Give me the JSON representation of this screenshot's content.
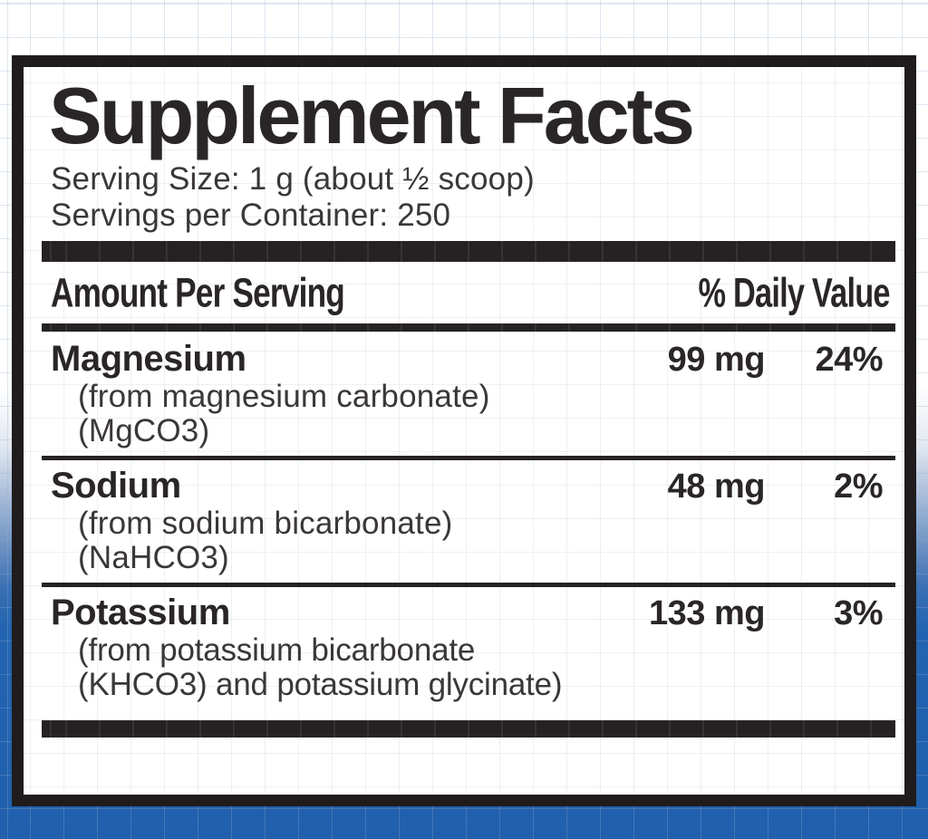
{
  "label": {
    "title": "Supplement Facts",
    "serving_size_line": "Serving Size: 1 g (about ½ scoop)",
    "servings_per_container_line": "Servings per Container: 250",
    "columns": {
      "amount_header": "Amount Per Serving",
      "daily_value_header": "% Daily Value"
    },
    "rows": [
      {
        "name": "Magnesium",
        "details": [
          "(from magnesium carbonate)",
          "(MgCO3)"
        ],
        "amount": "99 mg",
        "daily_value": "24%"
      },
      {
        "name": "Sodium",
        "details": [
          "(from sodium bicarbonate)",
          "(NaHCO3)"
        ],
        "amount": "48 mg",
        "daily_value": "2%"
      },
      {
        "name": "Potassium",
        "details": [
          "(from potassium bicarbonate",
          "(KHCO3) and potassium glycinate)"
        ],
        "amount": "133 mg",
        "daily_value": "3%"
      }
    ],
    "colors": {
      "background_blue": "#2264b1",
      "ink": "#2a2627"
    }
  }
}
